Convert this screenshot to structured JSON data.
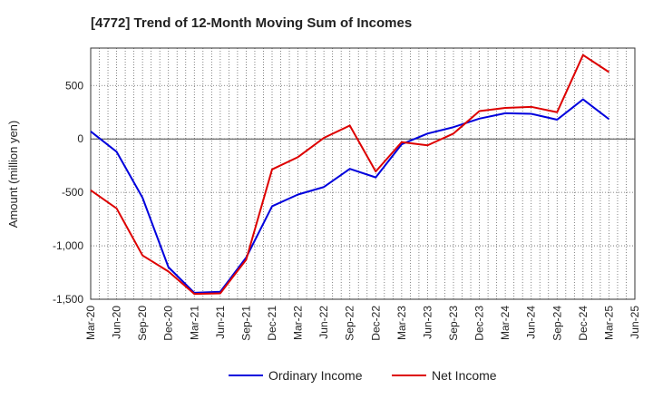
{
  "chart_data": {
    "type": "line",
    "title": "[4772]  Trend of 12-Month Moving Sum of Incomes",
    "xlabel": "",
    "ylabel": "Amount (million yen)",
    "ylim": [
      -1500,
      850
    ],
    "yticks": [
      -1500,
      -1000,
      -500,
      0,
      500
    ],
    "ytick_labels": [
      "-1,500",
      "-1,000",
      "-500",
      "0",
      "500"
    ],
    "categories": [
      "Mar-20",
      "Jun-20",
      "Sep-20",
      "Dec-20",
      "Mar-21",
      "Jun-21",
      "Sep-21",
      "Dec-21",
      "Mar-22",
      "Jun-22",
      "Sep-22",
      "Dec-22",
      "Mar-23",
      "Jun-23",
      "Sep-23",
      "Dec-23",
      "Mar-24",
      "Jun-24",
      "Sep-24",
      "Dec-24",
      "Mar-25",
      "Jun-25"
    ],
    "grid": true,
    "legend_position": "bottom",
    "series": [
      {
        "name": "Ordinary Income",
        "color": "#0000dd",
        "values": [
          70,
          -120,
          -550,
          -1200,
          -1440,
          -1430,
          -1110,
          -630,
          -520,
          -450,
          -280,
          -360,
          -50,
          50,
          110,
          190,
          240,
          235,
          180,
          370,
          185,
          null
        ]
      },
      {
        "name": "Net Income",
        "color": "#dd0000",
        "values": [
          -480,
          -650,
          -1090,
          -1240,
          -1450,
          -1445,
          -1130,
          -285,
          -170,
          10,
          125,
          -305,
          -30,
          -60,
          50,
          260,
          290,
          300,
          250,
          785,
          625,
          null
        ]
      }
    ]
  }
}
